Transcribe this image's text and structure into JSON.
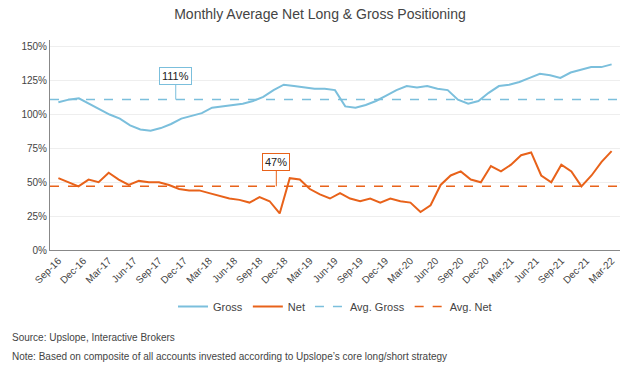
{
  "chart_data": {
    "type": "line",
    "title": "Monthly Average Net Long & Gross Positioning",
    "source": "Source: Upslope, Interactive Brokers",
    "note": "Note: Based on composite of all accounts invested according to Upslope’s core long/short strategy",
    "xlim": [
      -1,
      67
    ],
    "xticks": [
      {
        "value": 0,
        "label": "Sep-16"
      },
      {
        "value": 3,
        "label": "Dec-16"
      },
      {
        "value": 6,
        "label": "Mar-17"
      },
      {
        "value": 9,
        "label": "Jun-17"
      },
      {
        "value": 12,
        "label": "Sep-17"
      },
      {
        "value": 15,
        "label": "Dec-17"
      },
      {
        "value": 18,
        "label": "Mar-18"
      },
      {
        "value": 21,
        "label": "Jun-18"
      },
      {
        "value": 24,
        "label": "Sep-18"
      },
      {
        "value": 27,
        "label": "Dec-18"
      },
      {
        "value": 30,
        "label": "Mar-19"
      },
      {
        "value": 33,
        "label": "Jun-19"
      },
      {
        "value": 36,
        "label": "Sep-19"
      },
      {
        "value": 39,
        "label": "Dec-19"
      },
      {
        "value": 42,
        "label": "Mar-20"
      },
      {
        "value": 45,
        "label": "Jun-20"
      },
      {
        "value": 48,
        "label": "Sep-20"
      },
      {
        "value": 51,
        "label": "Dec-20"
      },
      {
        "value": 54,
        "label": "Mar-21"
      },
      {
        "value": 57,
        "label": "Jun-21"
      },
      {
        "value": 60,
        "label": "Sep-21"
      },
      {
        "value": 63,
        "label": "Dec-21"
      },
      {
        "value": 66,
        "label": "Mar-22"
      }
    ],
    "ylim": [
      0,
      1.55
    ],
    "yticks": [
      {
        "value": 0.0,
        "label": "0%"
      },
      {
        "value": 0.25,
        "label": "25%"
      },
      {
        "value": 0.5,
        "label": "50%"
      },
      {
        "value": 0.75,
        "label": "75%"
      },
      {
        "value": 1.0,
        "label": "100%"
      },
      {
        "value": 1.25,
        "label": "125%"
      },
      {
        "value": 1.5,
        "label": "150%"
      }
    ],
    "grid": "y",
    "legend": "bottom",
    "series": [
      {
        "name": "Gross",
        "color": "#7bbfdc",
        "line_style": "solid",
        "x": [
          0,
          1.2222,
          2.4444,
          3.6667,
          4.8889,
          6.1111,
          7.3333,
          8.5556,
          9.7778,
          11,
          12.2222,
          13.4444,
          14.6667,
          15.8889,
          17.1111,
          18.3333,
          19.5556,
          20.7778,
          22,
          23.2222,
          24.4444,
          25.6667,
          26.8889,
          28.1111,
          29.3333,
          30.5556,
          31.7778,
          33,
          34.2222,
          35.4444,
          36.6667,
          37.8889,
          39.1111,
          40.3333,
          41.5556,
          42.7778,
          44,
          45.2222,
          46.4444,
          47.6667,
          48.8889,
          50.1111,
          51.3333,
          52.5556,
          53.7778,
          55,
          56.2222,
          57.4444,
          58.6667,
          59.8889,
          61.1111,
          62.3333,
          63.5556,
          64.7778,
          66
        ],
        "values": [
          1.09,
          1.11,
          1.12,
          1.08,
          1.04,
          1.0,
          0.97,
          0.92,
          0.89,
          0.88,
          0.9,
          0.93,
          0.97,
          0.99,
          1.01,
          1.05,
          1.06,
          1.07,
          1.08,
          1.1,
          1.13,
          1.18,
          1.22,
          1.21,
          1.2,
          1.19,
          1.19,
          1.18,
          1.06,
          1.05,
          1.07,
          1.1,
          1.14,
          1.18,
          1.21,
          1.2,
          1.21,
          1.19,
          1.18,
          1.11,
          1.08,
          1.1,
          1.16,
          1.21,
          1.22,
          1.24,
          1.27,
          1.3,
          1.29,
          1.27,
          1.31,
          1.33,
          1.35,
          1.35,
          1.37
        ]
      },
      {
        "name": "Net",
        "color": "#e8621a",
        "line_style": "solid",
        "x": [
          0,
          1.2,
          2.4,
          3.6,
          4.8,
          6,
          7.2,
          8.4,
          9.6,
          10.8,
          12,
          13.2,
          14.4,
          15.6,
          16.8,
          18,
          19.2,
          20.4,
          21.6,
          22.8,
          24,
          25.2,
          26.4,
          27.6,
          28.8,
          30,
          31.2,
          32.4,
          33.6,
          34.8,
          36,
          37.2,
          38.4,
          39.6,
          40.8,
          42,
          43.2,
          44.4,
          45.6,
          46.8,
          48,
          49.2,
          50.4,
          51.6,
          52.8,
          54,
          55.2,
          56.4,
          57.6,
          58.8,
          60,
          61.2,
          62.4,
          63.6,
          64.8,
          66
        ],
        "values": [
          0.53,
          0.5,
          0.47,
          0.52,
          0.5,
          0.57,
          0.52,
          0.48,
          0.51,
          0.5,
          0.5,
          0.48,
          0.45,
          0.44,
          0.44,
          0.42,
          0.4,
          0.38,
          0.37,
          0.35,
          0.39,
          0.36,
          0.27,
          0.53,
          0.52,
          0.45,
          0.41,
          0.38,
          0.42,
          0.38,
          0.36,
          0.38,
          0.35,
          0.38,
          0.36,
          0.35,
          0.28,
          0.33,
          0.48,
          0.55,
          0.58,
          0.52,
          0.5,
          0.62,
          0.58,
          0.63,
          0.7,
          0.72,
          0.55,
          0.5,
          0.63,
          0.58,
          0.47,
          0.55,
          0.65,
          0.73
        ]
      },
      {
        "name": "Avg. Gross",
        "type": "hline",
        "color": "#7bbfdc",
        "line_style": "dashed",
        "values": [
          1.11
        ]
      },
      {
        "name": "Avg. Net",
        "type": "hline",
        "color": "#e8621a",
        "line_style": "dashed",
        "values": [
          0.47
        ]
      }
    ],
    "annotations": [
      {
        "text": "111%",
        "x": 14,
        "y": 1.11,
        "color": "#7bbfdc"
      },
      {
        "text": "47%",
        "x": 26,
        "y": 0.47,
        "color": "#e8621a"
      }
    ]
  }
}
